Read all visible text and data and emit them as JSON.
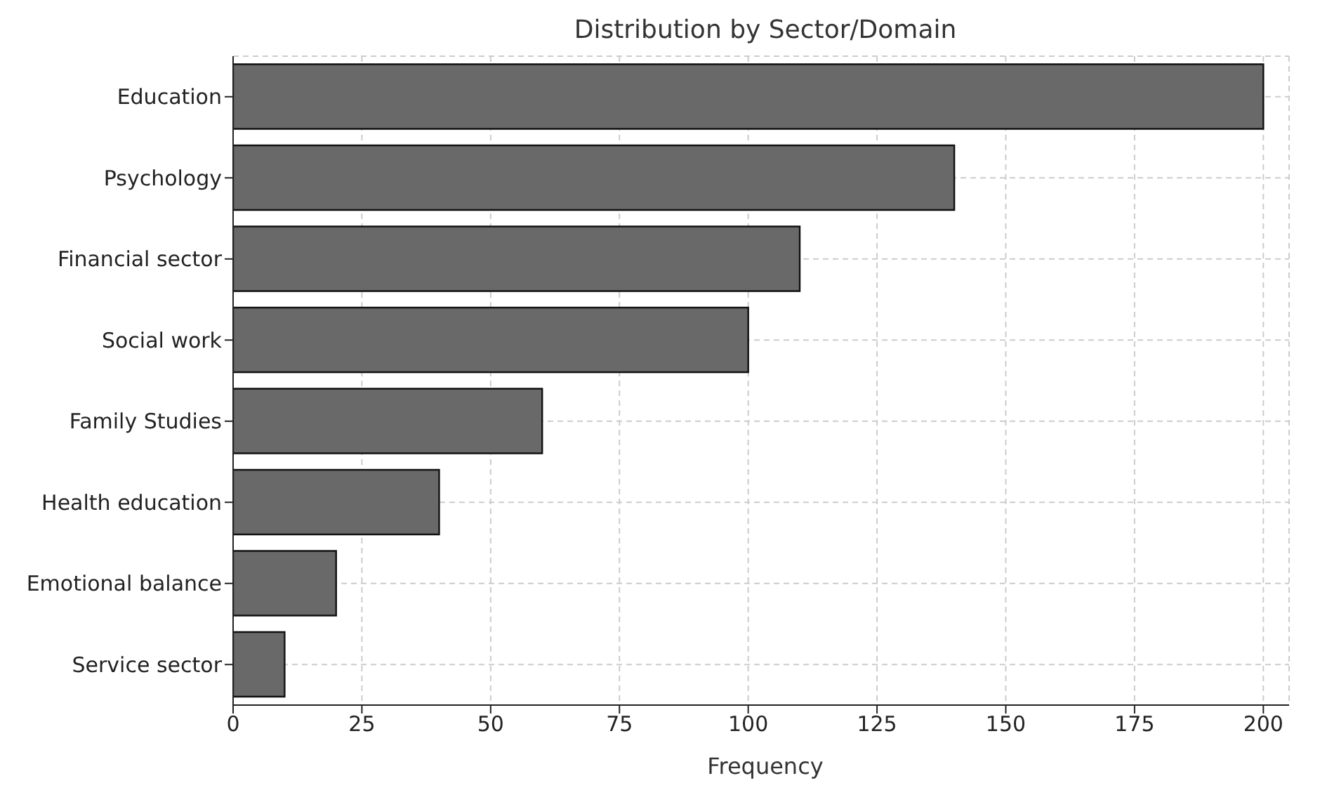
{
  "chart_data": {
    "type": "bar",
    "orientation": "horizontal",
    "title": "Distribution by Sector/Domain",
    "xlabel": "Frequency",
    "categories": [
      "Education",
      "Psychology",
      "Financial sector",
      "Social work",
      "Family Studies",
      "Health education",
      "Emotional balance",
      "Service sector"
    ],
    "values": [
      200,
      140,
      110,
      100,
      60,
      40,
      20,
      10
    ],
    "color": "#696969",
    "xlim": [
      0,
      205
    ],
    "xticks": [
      0,
      25,
      50,
      75,
      100,
      125,
      150,
      175,
      200
    ],
    "grid": true
  }
}
